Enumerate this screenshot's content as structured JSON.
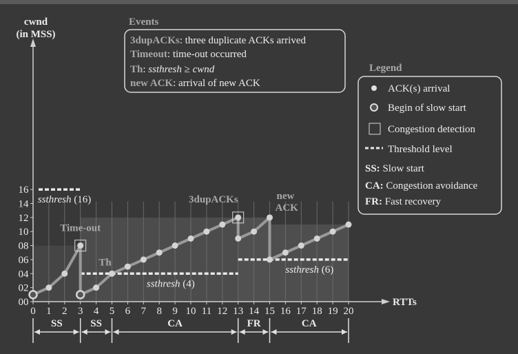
{
  "chart_data": {
    "type": "line",
    "y_axis": {
      "label_line1": "cwnd",
      "label_line2": "(in MSS)",
      "ticks": [
        "00",
        "02",
        "04",
        "06",
        "08",
        "10",
        "12",
        "14",
        "16"
      ],
      "range": [
        0,
        16
      ]
    },
    "x_axis": {
      "label": "RTTs",
      "ticks": [
        "0",
        "1",
        "2",
        "3",
        "4",
        "5",
        "6",
        "7",
        "8",
        "9",
        "10",
        "11",
        "12",
        "13",
        "14",
        "15",
        "16",
        "17",
        "18",
        "19",
        "20"
      ],
      "range": [
        0,
        20
      ]
    },
    "cwnd_trace": [
      {
        "x": 0,
        "y": 1,
        "marker": "slow-start"
      },
      {
        "x": 1,
        "y": 2,
        "marker": "ack"
      },
      {
        "x": 2,
        "y": 4,
        "marker": "ack"
      },
      {
        "x": 3,
        "y": 8,
        "marker": "ack"
      },
      {
        "x": 3,
        "y": 1,
        "marker": "slow-start"
      },
      {
        "x": 4,
        "y": 2,
        "marker": "ack"
      },
      {
        "x": 5,
        "y": 4,
        "marker": "ack"
      },
      {
        "x": 6,
        "y": 5,
        "marker": "ack"
      },
      {
        "x": 7,
        "y": 6,
        "marker": "ack"
      },
      {
        "x": 8,
        "y": 7,
        "marker": "ack"
      },
      {
        "x": 9,
        "y": 8,
        "marker": "ack"
      },
      {
        "x": 10,
        "y": 9,
        "marker": "ack"
      },
      {
        "x": 11,
        "y": 10,
        "marker": "ack"
      },
      {
        "x": 12,
        "y": 11,
        "marker": "ack"
      },
      {
        "x": 13,
        "y": 12,
        "marker": "ack"
      },
      {
        "x": 13,
        "y": 9,
        "marker": "ack"
      },
      {
        "x": 14,
        "y": 10,
        "marker": "ack"
      },
      {
        "x": 15,
        "y": 12,
        "marker": "ack"
      },
      {
        "x": 15,
        "y": 6,
        "marker": "ack"
      },
      {
        "x": 16,
        "y": 7,
        "marker": "ack"
      },
      {
        "x": 17,
        "y": 8,
        "marker": "ack"
      },
      {
        "x": 18,
        "y": 9,
        "marker": "ack"
      },
      {
        "x": 19,
        "y": 10,
        "marker": "ack"
      },
      {
        "x": 20,
        "y": 11,
        "marker": "ack"
      }
    ],
    "thresholds": [
      {
        "x_start": 0,
        "x_end": 3,
        "y": 16,
        "label_italic": "ssthresh",
        "label_value": " (16)"
      },
      {
        "x_start": 3,
        "x_end": 13,
        "y": 4,
        "label_italic": "ssthresh",
        "label_value": " (4)"
      },
      {
        "x_start": 13,
        "x_end": 20,
        "y": 6,
        "label_italic": "ssthresh",
        "label_value": " (6)"
      }
    ],
    "congestion_points": [
      {
        "x": 3,
        "y": 8,
        "label": "Time-out"
      },
      {
        "x": 13,
        "y": 12,
        "label": "3dupACKs"
      }
    ],
    "th_annotation": {
      "x": 5,
      "y": 4,
      "label": "Th"
    },
    "new_ack_annotation": {
      "x": 15,
      "y": 12,
      "line1": "new",
      "line2": "ACK"
    },
    "phases": [
      {
        "x_start": 0,
        "x_end": 3,
        "label": "SS"
      },
      {
        "x_start": 3,
        "x_end": 5,
        "label": "SS"
      },
      {
        "x_start": 5,
        "x_end": 13,
        "label": "CA"
      },
      {
        "x_start": 13,
        "x_end": 15,
        "label": "FR"
      },
      {
        "x_start": 15,
        "x_end": 20,
        "label": "CA"
      }
    ],
    "shaded_regions": [
      {
        "x_start": 0,
        "x_end": 3,
        "y_top": 8
      },
      {
        "x_start": 3,
        "x_end": 13,
        "y_top": 12
      },
      {
        "x_start": 13,
        "x_end": 15,
        "y_top": 12
      },
      {
        "x_start": 15,
        "x_end": 20,
        "y_top": 11
      }
    ]
  },
  "events": {
    "title": "Events",
    "items": [
      {
        "term": "3dupACKs",
        "desc": ": three duplicate ACKs arrived"
      },
      {
        "term": "Timeout",
        "desc": ": time-out occurred"
      },
      {
        "term": "Th",
        "desc": ": ",
        "italic_a": "ssthresh",
        "op": " ≥ ",
        "italic_b": "cwnd"
      },
      {
        "term": "new ACK",
        "desc": ": arrival of new ACK"
      }
    ]
  },
  "legend": {
    "title": "Legend",
    "items": [
      {
        "icon": "dot-icon",
        "text": "ACK(s) arrival"
      },
      {
        "icon": "ring-icon",
        "text": "Begin of slow start"
      },
      {
        "icon": "square-icon",
        "text": "Congestion detection"
      },
      {
        "icon": "dashed-line-icon",
        "text": "Threshold level"
      },
      {
        "abbr": "SS:",
        "text": " Slow start"
      },
      {
        "abbr": "CA:",
        "text": " Congestion avoidance"
      },
      {
        "abbr": "FR:",
        "text": " Fast recovery"
      }
    ]
  },
  "colors": {
    "background": "#383838",
    "top_bar": "#5a5a5a",
    "line": "#9a9a9a",
    "marker": "#d4d4d4",
    "label_gray": "#a8a8a8",
    "text_light": "#ececec",
    "threshold": "#e8e8e8"
  }
}
